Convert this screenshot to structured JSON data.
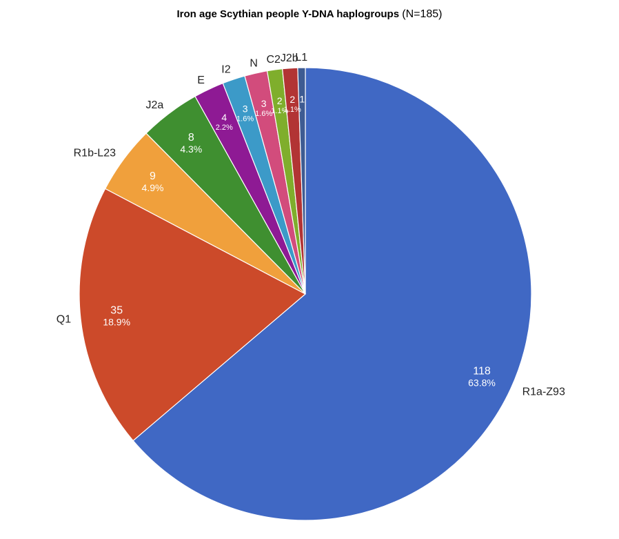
{
  "chart_data": {
    "type": "pie",
    "title": "Iron age Scythian people Y-DNA haplogroups",
    "subtitle": "(N=185)",
    "slices": [
      {
        "label": "R1a-Z93",
        "value": 118,
        "percent": "63.8%",
        "color": "#4068c4"
      },
      {
        "label": "Q1",
        "value": 35,
        "percent": "18.9%",
        "color": "#cc4a2a"
      },
      {
        "label": "R1b-L23",
        "value": 9,
        "percent": "4.9%",
        "color": "#f0a03c"
      },
      {
        "label": "J2a",
        "value": 8,
        "percent": "4.3%",
        "color": "#3f8f30"
      },
      {
        "label": "E",
        "value": 4,
        "percent": "2.2%",
        "color": "#8e1a94"
      },
      {
        "label": "I2",
        "value": 3,
        "percent": "1.6%",
        "color": "#3c9ac8"
      },
      {
        "label": "N",
        "value": 3,
        "percent": "1.6%",
        "color": "#d24c7c"
      },
      {
        "label": "C2",
        "value": 2,
        "percent": "1.1%",
        "color": "#7fae2c"
      },
      {
        "label": "J2b",
        "value": 2,
        "percent": "1.1%",
        "color": "#b23434"
      },
      {
        "label": "L1",
        "value": 1,
        "percent": "",
        "color": "#3e5b92"
      }
    ]
  }
}
